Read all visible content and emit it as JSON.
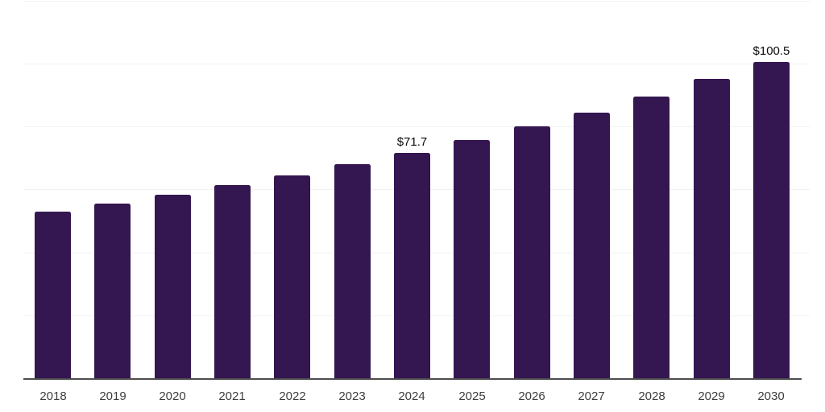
{
  "chart_data": {
    "type": "bar",
    "title": "",
    "xlabel": "",
    "ylabel": "",
    "legend": "none",
    "grid": "horizontal",
    "categories": [
      "2018",
      "2019",
      "2020",
      "2021",
      "2022",
      "2023",
      "2024",
      "2025",
      "2026",
      "2027",
      "2028",
      "2029",
      "2030"
    ],
    "values": [
      52.9,
      55.5,
      58.3,
      61.4,
      64.5,
      68.0,
      71.7,
      75.7,
      80.1,
      84.4,
      89.5,
      95.1,
      100.5
    ],
    "bar_labels": [
      "",
      "",
      "",
      "",
      "",
      "",
      "$71.7",
      "",
      "",
      "",
      "",
      "",
      "$100.5"
    ],
    "ylim": [
      0,
      120
    ],
    "grid_values": [
      20,
      40,
      60,
      80,
      100,
      120
    ],
    "colors": {
      "bar": "#341650",
      "value_label": "#0a0a0a",
      "tick_label": "#3d3d3d",
      "gridline": "#f1f1f3",
      "axis_line": "#4d4d4d",
      "background": "#ffffff"
    }
  }
}
